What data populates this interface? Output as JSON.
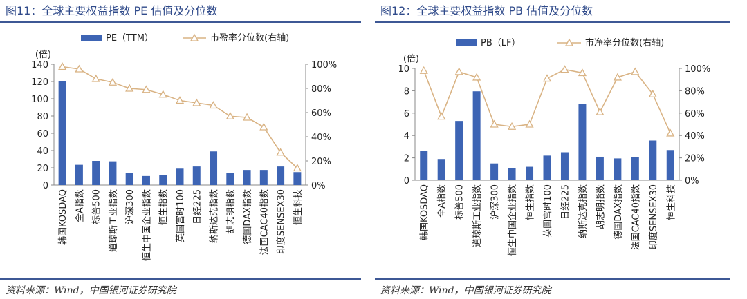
{
  "colors": {
    "bar": "#3d64b4",
    "line": "#d9b384",
    "title": "#2f4a8a",
    "rule": "#3e5895"
  },
  "panels": [
    {
      "title": "图11：全球主要权益指数 PE 估值及分位数",
      "source": "资料来源：Wind，中国银河证券研究院",
      "chart_data": {
        "type": "bar",
        "unit_label": "(倍)",
        "categories": [
          "韩国KOSDAQ",
          "全A指数",
          "标普500",
          "道琼斯工业指数",
          "沪深300",
          "恒生中国企业指数",
          "恒生指数",
          "英国富时100",
          "日经225",
          "纳斯达克指数",
          "胡志明指数",
          "德国DAX指数",
          "法国CAC40指数",
          "印度SENSEX30",
          "恒生科技"
        ],
        "series": [
          {
            "name": "PE（TTM）",
            "type": "bar",
            "axis": "left",
            "values": [
              120,
              23.5,
              28,
              27.5,
              14,
              10.5,
              11.5,
              19,
              21.5,
              39,
              14,
              17.5,
              17.5,
              21.5,
              15
            ]
          },
          {
            "name": "市盈率分位数(右轴)",
            "type": "line",
            "axis": "right",
            "values": [
              98,
              96,
              88,
              85,
              80,
              79,
              75,
              70,
              68,
              66,
              57,
              56,
              48,
              27,
              14
            ]
          }
        ],
        "y_left": {
          "min": 0,
          "max": 140,
          "ticks": [
            0,
            20,
            40,
            60,
            80,
            100,
            120,
            140
          ]
        },
        "y_right": {
          "min": 0,
          "max": 100,
          "ticks": [
            "0%",
            "20%",
            "40%",
            "60%",
            "80%",
            "100%"
          ]
        },
        "legend": "top-center"
      }
    },
    {
      "title": "图12：全球主要权益指数 PB 估值及分位数",
      "source": "资料来源：Wind，中国银河证券研究院",
      "chart_data": {
        "type": "bar",
        "unit_label": "(倍)",
        "categories": [
          "韩国KOSDAQ",
          "全A指数",
          "标普500",
          "道琼斯工业指数",
          "沪深300",
          "恒生中国企业指数",
          "恒生指数",
          "英国富时100",
          "日经225",
          "纳斯达克指数",
          "胡志明指数",
          "德国DAX指数",
          "法国CAC40指数",
          "印度SENSEX30",
          "恒生科技"
        ],
        "series": [
          {
            "name": "PB（LF）",
            "type": "bar",
            "axis": "left",
            "values": [
              2.65,
              1.9,
              5.3,
              7.95,
              1.5,
              1.05,
              1.2,
              2.2,
              2.5,
              6.8,
              2.1,
              1.95,
              2.05,
              3.55,
              2.7
            ]
          },
          {
            "name": "市净率分位数(右轴)",
            "type": "line",
            "axis": "right",
            "values": [
              98,
              57,
              97,
              92,
              50,
              48,
              50,
              91,
              99,
              96,
              61,
              92,
              97,
              77,
              42
            ]
          }
        ],
        "y_left": {
          "min": 0,
          "max": 10,
          "ticks": [
            0,
            2,
            4,
            6,
            8,
            10
          ]
        },
        "y_right": {
          "min": 0,
          "max": 100,
          "ticks": [
            "0%",
            "20%",
            "40%",
            "60%",
            "80%",
            "100%"
          ]
        },
        "legend": "top-center"
      }
    }
  ]
}
